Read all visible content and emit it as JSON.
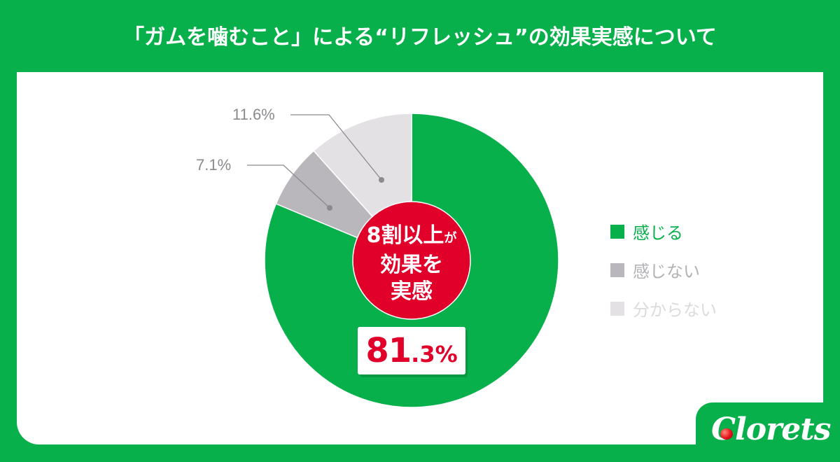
{
  "title": "「ガムを噛むこと」による“リフレッシュ”の効果実感について",
  "colors": {
    "background": "#08b04b",
    "panel": "#ffffff",
    "feel": "#08b04b",
    "not_feel": "#b9b7bb",
    "unknown": "#e3e1e4",
    "accent_red": "#e1002a",
    "label_gray": "#8c8a8e"
  },
  "center": {
    "line1": "8割以上",
    "line1_small": "が",
    "line2": "効果を",
    "line3": "実感"
  },
  "highlight": {
    "integer": "81",
    "decimal": ".3%"
  },
  "callouts": {
    "unknown": "11.6%",
    "not_feel": "7.1%"
  },
  "legend": [
    {
      "label": "感じる",
      "color": "#08b04b",
      "text_color": "#08b04b"
    },
    {
      "label": "感じない",
      "color": "#b9b7bb",
      "text_color": "#b3b1b5"
    },
    {
      "label": "分からない",
      "color": "#e3e1e4",
      "text_color": "#dcdadd"
    }
  ],
  "logo": {
    "text": "Clorets"
  },
  "chart_data": {
    "type": "pie",
    "title": "「ガムを噛むこと」による“リフレッシュ”の効果実感について",
    "categories": [
      "感じる",
      "感じない",
      "分からない"
    ],
    "values": [
      81.3,
      7.1,
      11.6
    ],
    "unit": "%",
    "colors": [
      "#08b04b",
      "#b9b7bb",
      "#e3e1e4"
    ],
    "start_angle_deg": 0,
    "direction": "clockwise",
    "legend_position": "right",
    "annotations": [
      "8割以上が効果を実感",
      "81.3%"
    ]
  }
}
